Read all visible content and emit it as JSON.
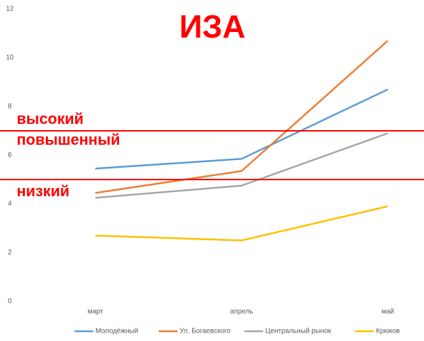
{
  "chart_data": {
    "type": "line",
    "title": "ИЗА",
    "categories": [
      "март",
      "апрель",
      "май"
    ],
    "series": [
      {
        "name": "Молодёжный",
        "color": "#5b9bd5",
        "values": [
          5.45,
          5.85,
          8.7
        ]
      },
      {
        "name": "Ул. Богаевского",
        "color": "#ed7d31",
        "values": [
          4.45,
          5.35,
          10.7
        ]
      },
      {
        "name": "Центральный рынок",
        "color": "#a5a5a5",
        "values": [
          4.25,
          4.75,
          6.9
        ]
      },
      {
        "name": "Крюков",
        "color": "#ffc000",
        "values": [
          2.7,
          2.5,
          3.9
        ]
      }
    ],
    "ylim": [
      0,
      12
    ],
    "yticks": [
      0,
      2,
      4,
      6,
      8,
      10,
      12
    ],
    "grid": false,
    "reference_lines": [
      {
        "value": 7,
        "color": "#ff0000"
      },
      {
        "value": 5,
        "color": "#ff0000"
      }
    ],
    "annotations": [
      "высокий",
      "повышенный",
      "низкий"
    ],
    "legend": "bottom"
  }
}
